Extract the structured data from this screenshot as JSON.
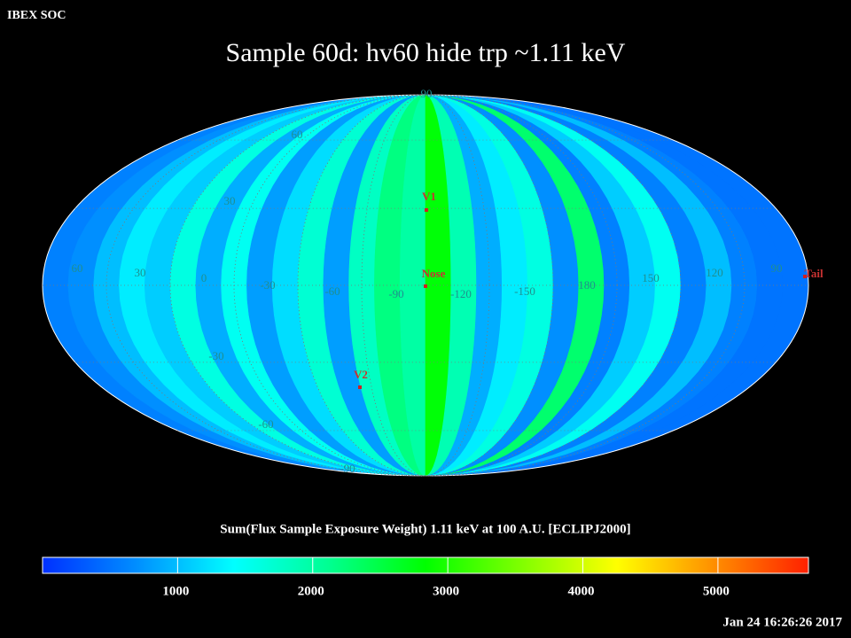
{
  "header": {
    "org": "IBEX SOC",
    "title": "Sample 60d: hv60 hide trp ~1.11 keV",
    "timestamp": "Jan 24 16:26:26 2017"
  },
  "map": {
    "strip_values": [
      600,
      700,
      1000,
      1300,
      1100,
      1600,
      900,
      1500,
      800,
      1200,
      1700,
      800,
      1800,
      2200,
      2000,
      2800,
      1900,
      900,
      1300,
      1600,
      700,
      2300,
      600,
      1100,
      1500,
      600,
      1000,
      600,
      500,
      500
    ],
    "lon_labels": [
      60,
      30,
      0,
      -30,
      -60,
      -90,
      -120,
      -150,
      180,
      150,
      120,
      90
    ],
    "lat_labels": [
      90,
      60,
      30,
      -30,
      -60,
      -90
    ],
    "markers": [
      {
        "label": "V1"
      },
      {
        "label": "Nose"
      },
      {
        "label": "V2"
      },
      {
        "label": "Tail"
      }
    ]
  },
  "colorbar": {
    "label": "Sum(Flux Sample Exposure Weight)  1.11 keV at 100 A.U. [ECLIPJ2000]",
    "range": [
      0,
      5670
    ],
    "ticks": [
      1000,
      2000,
      3000,
      4000,
      5000
    ],
    "colors": [
      "#0030ff",
      "#0090ff",
      "#00ffff",
      "#00ff90",
      "#00ff00",
      "#80ff00",
      "#ffff00",
      "#ff9000",
      "#ff2000"
    ]
  }
}
